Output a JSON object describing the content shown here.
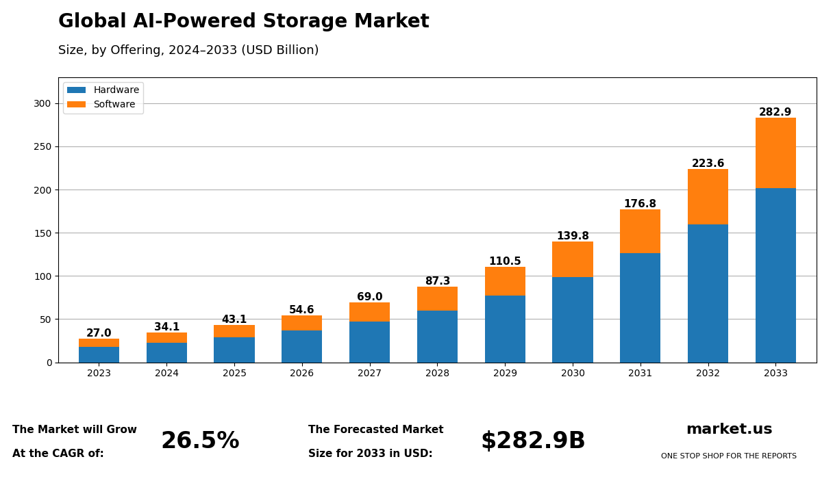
{
  "chart_data": {
    "type": "bar",
    "title": "Global AI-Powered Storage Market",
    "subtitle": "Size, by Offering, 2024–2033 (USD Billion)",
    "categories": [
      "2023",
      "2024",
      "2025",
      "2026",
      "2027",
      "2028",
      "2029",
      "2030",
      "2031",
      "2032",
      "2033"
    ],
    "series": [
      {
        "name": "Hardware",
        "values": [
          18.0,
          22.5,
          29.0,
          37.0,
          47.0,
          60.0,
          77.0,
          99.0,
          126.0,
          160.0,
          202.0
        ]
      },
      {
        "name": "Software",
        "values": [
          9.0,
          11.6,
          14.1,
          17.6,
          22.0,
          27.3,
          33.5,
          40.8,
          50.8,
          63.6,
          80.9
        ]
      }
    ],
    "totals": [
      27.0,
      34.1,
      43.1,
      54.6,
      69.0,
      87.3,
      110.5,
      139.8,
      176.8,
      223.6,
      282.9
    ],
    "stacked": true,
    "ylim": [
      0,
      330
    ],
    "yticks": [
      0,
      50,
      100,
      150,
      200,
      250,
      300
    ],
    "grid": true,
    "legend": "upper left",
    "annotations": [
      "The Market will Grow",
      "At the CAGR of:",
      "26.5%",
      "The Forecasted Market",
      "Size for 2033 in USD:",
      "$282.9B",
      "market.us",
      "ONE STOP SHOP FOR THE REPORTS"
    ]
  }
}
